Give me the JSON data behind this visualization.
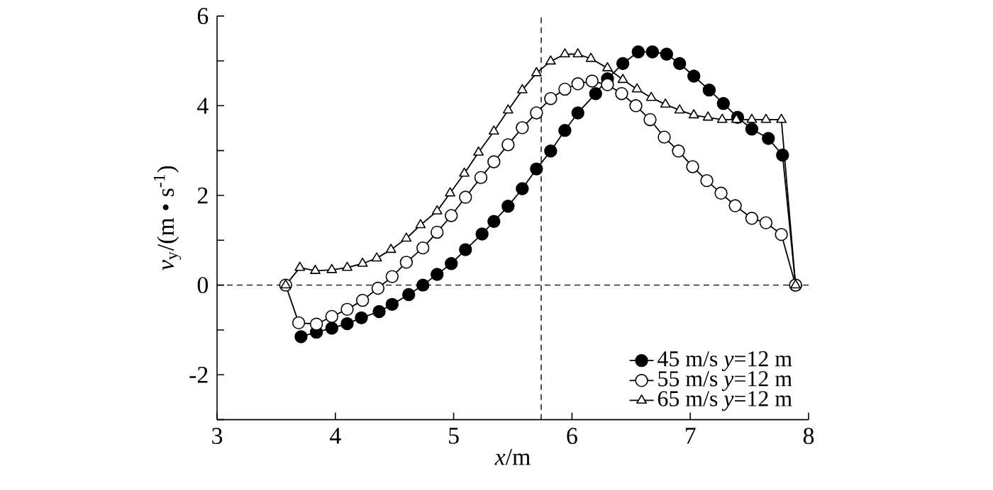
{
  "chart_data": {
    "type": "line",
    "xlabel": "*x*/m",
    "ylabel": "*v*$_{y}$/(m • s$^{-1}$)",
    "xlim": [
      3,
      8
    ],
    "xticks": [
      3,
      4,
      5,
      6,
      7,
      8
    ],
    "ylim": [
      -3,
      6
    ],
    "yticks": [
      {
        "value": -3,
        "label": null
      },
      -2,
      {
        "value": -1,
        "label": null
      },
      0,
      {
        "value": 1,
        "label": null
      },
      2,
      {
        "value": 3,
        "label": null
      },
      4,
      {
        "value": 5,
        "label": null
      },
      6
    ],
    "grid": false,
    "legend": "bottom right",
    "line_style": "solid",
    "ref_lines": [
      {
        "axis": "y",
        "value": 0,
        "line_style": "dashed"
      },
      {
        "axis": "x",
        "value": 5.74,
        "line_style": "dashed"
      }
    ],
    "series": [
      {
        "name": "45 m/s  *y*=12 m",
        "color": "#000000",
        "marker": "circle",
        "x": [
          3.71,
          3.84,
          3.97,
          4.1,
          4.22,
          4.37,
          4.48,
          4.62,
          4.74,
          4.86,
          4.98,
          5.1,
          5.24,
          5.34,
          5.46,
          5.58,
          5.7,
          5.82,
          5.94,
          6.05,
          6.2,
          6.3,
          6.43,
          6.56,
          6.68,
          6.8,
          6.91,
          7.03,
          7.16,
          7.28,
          7.4,
          7.52,
          7.66,
          7.78,
          7.89
        ],
        "values": [
          -1.15,
          -1.05,
          -0.96,
          -0.86,
          -0.73,
          -0.59,
          -0.43,
          -0.21,
          0.0,
          0.24,
          0.48,
          0.79,
          1.14,
          1.42,
          1.76,
          2.15,
          2.59,
          2.99,
          3.45,
          3.84,
          4.27,
          4.6,
          4.94,
          5.2,
          5.2,
          5.15,
          4.94,
          4.66,
          4.35,
          4.05,
          3.74,
          3.48,
          3.27,
          2.9,
          0
        ]
      },
      {
        "name": "55 m/s  *y*=12 m",
        "color": "#ffffff",
        "marker": "circle",
        "x": [
          3.58,
          3.69,
          3.84,
          3.97,
          4.1,
          4.23,
          4.36,
          4.48,
          4.6,
          4.74,
          4.86,
          4.98,
          5.1,
          5.23,
          5.34,
          5.46,
          5.58,
          5.7,
          5.82,
          5.94,
          6.05,
          6.17,
          6.3,
          6.42,
          6.54,
          6.66,
          6.78,
          6.9,
          7.02,
          7.14,
          7.26,
          7.38,
          7.52,
          7.64,
          7.77,
          7.89
        ],
        "values": [
          0,
          -0.84,
          -0.87,
          -0.7,
          -0.54,
          -0.34,
          -0.07,
          0.19,
          0.51,
          0.83,
          1.18,
          1.55,
          1.96,
          2.4,
          2.75,
          3.13,
          3.51,
          3.84,
          4.16,
          4.37,
          4.49,
          4.55,
          4.47,
          4.27,
          4.0,
          3.69,
          3.3,
          2.99,
          2.64,
          2.33,
          2.05,
          1.77,
          1.49,
          1.39,
          1.13,
          0
        ]
      },
      {
        "name": "65 m/s  *y*=12 m",
        "color": "#ffffff",
        "marker": "triangle",
        "x": [
          3.58,
          3.7,
          3.83,
          3.97,
          4.1,
          4.23,
          4.35,
          4.47,
          4.6,
          4.72,
          4.86,
          4.97,
          5.09,
          5.21,
          5.34,
          5.46,
          5.58,
          5.7,
          5.82,
          5.94,
          6.05,
          6.16,
          6.3,
          6.43,
          6.55,
          6.67,
          6.79,
          6.91,
          7.03,
          7.15,
          7.27,
          7.39,
          7.52,
          7.64,
          7.77,
          7.89
        ],
        "values": [
          0,
          0.39,
          0.32,
          0.34,
          0.39,
          0.48,
          0.6,
          0.79,
          1.04,
          1.34,
          1.65,
          2.05,
          2.49,
          2.96,
          3.43,
          3.9,
          4.35,
          4.73,
          4.99,
          5.15,
          5.15,
          5.05,
          4.84,
          4.58,
          4.37,
          4.18,
          4.03,
          3.9,
          3.79,
          3.74,
          3.69,
          3.69,
          3.69,
          3.69,
          3.69,
          0
        ]
      }
    ]
  }
}
